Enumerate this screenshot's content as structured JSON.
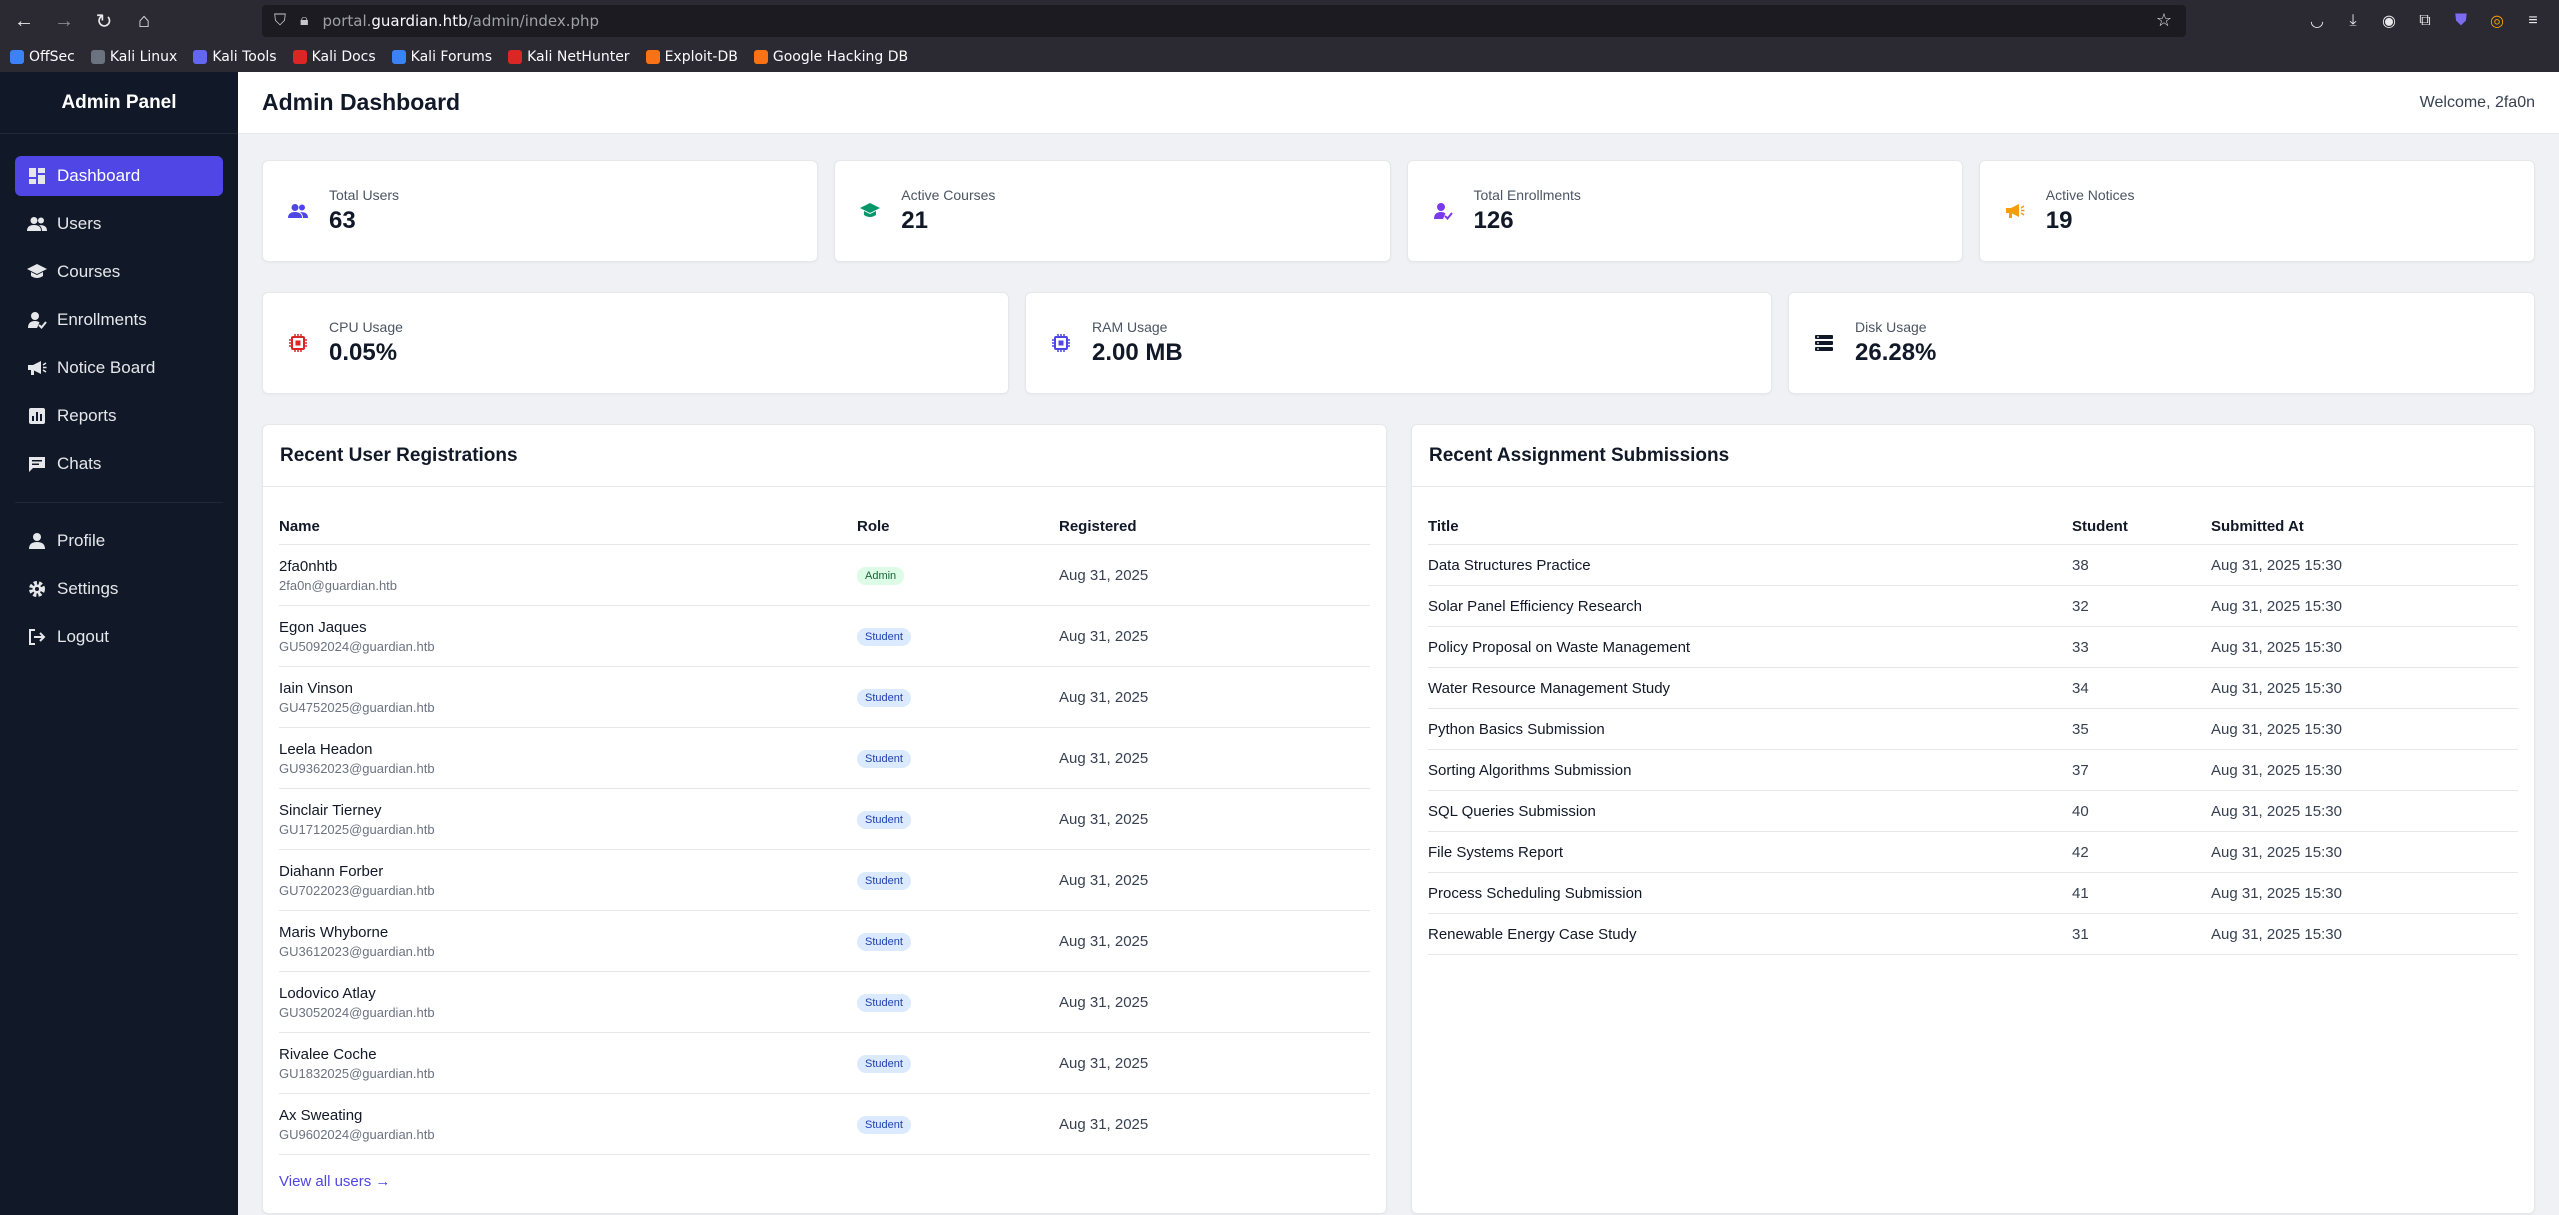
{
  "browser": {
    "url_prefix": "portal.",
    "url_domain": "guardian.htb",
    "url_path": "/admin/index.php",
    "bookmarks": [
      "OffSec",
      "Kali Linux",
      "Kali Tools",
      "Kali Docs",
      "Kali Forums",
      "Kali NetHunter",
      "Exploit-DB",
      "Google Hacking DB"
    ]
  },
  "sidebar": {
    "title": "Admin Panel",
    "items": [
      {
        "label": "Dashboard",
        "icon": "dashboard-icon",
        "active": true
      },
      {
        "label": "Users",
        "icon": "users-icon"
      },
      {
        "label": "Courses",
        "icon": "graduation-cap-icon"
      },
      {
        "label": "Enrollments",
        "icon": "user-check-icon"
      },
      {
        "label": "Notice Board",
        "icon": "megaphone-icon"
      },
      {
        "label": "Reports",
        "icon": "chart-icon"
      },
      {
        "label": "Chats",
        "icon": "chat-icon"
      }
    ],
    "footer_items": [
      {
        "label": "Profile",
        "icon": "user-icon"
      },
      {
        "label": "Settings",
        "icon": "gear-icon"
      },
      {
        "label": "Logout",
        "icon": "logout-icon"
      }
    ]
  },
  "header": {
    "title": "Admin Dashboard",
    "welcome": "Welcome, 2fa0n"
  },
  "stats": [
    {
      "label": "Total Users",
      "value": "63",
      "icon": "users-icon",
      "color": "#4f46e5"
    },
    {
      "label": "Active Courses",
      "value": "21",
      "icon": "graduation-cap-icon",
      "color": "#059669"
    },
    {
      "label": "Total Enrollments",
      "value": "126",
      "icon": "user-check-icon",
      "color": "#7c3aed"
    },
    {
      "label": "Active Notices",
      "value": "19",
      "icon": "megaphone-icon",
      "color": "#f59e0b"
    }
  ],
  "system": [
    {
      "label": "CPU Usage",
      "value": "0.05%",
      "icon": "cpu-icon",
      "color": "#dc2626"
    },
    {
      "label": "RAM Usage",
      "value": "2.00 MB",
      "icon": "memory-icon",
      "color": "#4f46e5"
    },
    {
      "label": "Disk Usage",
      "value": "26.28%",
      "icon": "disk-icon",
      "color": "#111827"
    }
  ],
  "registrations": {
    "title": "Recent User Registrations",
    "columns": [
      "Name",
      "Role",
      "Registered"
    ],
    "rows": [
      {
        "name": "2fa0nhtb",
        "email": "2fa0n@guardian.htb",
        "role": "Admin",
        "date": "Aug 31, 2025"
      },
      {
        "name": "Egon Jaques",
        "email": "GU5092024@guardian.htb",
        "role": "Student",
        "date": "Aug 31, 2025"
      },
      {
        "name": "Iain Vinson",
        "email": "GU4752025@guardian.htb",
        "role": "Student",
        "date": "Aug 31, 2025"
      },
      {
        "name": "Leela Headon",
        "email": "GU9362023@guardian.htb",
        "role": "Student",
        "date": "Aug 31, 2025"
      },
      {
        "name": "Sinclair Tierney",
        "email": "GU1712025@guardian.htb",
        "role": "Student",
        "date": "Aug 31, 2025"
      },
      {
        "name": "Diahann Forber",
        "email": "GU7022023@guardian.htb",
        "role": "Student",
        "date": "Aug 31, 2025"
      },
      {
        "name": "Maris Whyborne",
        "email": "GU3612023@guardian.htb",
        "role": "Student",
        "date": "Aug 31, 2025"
      },
      {
        "name": "Lodovico Atlay",
        "email": "GU3052024@guardian.htb",
        "role": "Student",
        "date": "Aug 31, 2025"
      },
      {
        "name": "Rivalee Coche",
        "email": "GU1832025@guardian.htb",
        "role": "Student",
        "date": "Aug 31, 2025"
      },
      {
        "name": "Ax Sweating",
        "email": "GU9602024@guardian.htb",
        "role": "Student",
        "date": "Aug 31, 2025"
      }
    ],
    "view_all": "View all users →"
  },
  "submissions": {
    "title": "Recent Assignment Submissions",
    "columns": [
      "Title",
      "Student",
      "Submitted At"
    ],
    "rows": [
      {
        "title": "Data Structures Practice",
        "student": "38",
        "submitted": "Aug 31, 2025 15:30"
      },
      {
        "title": "Solar Panel Efficiency Research",
        "student": "32",
        "submitted": "Aug 31, 2025 15:30"
      },
      {
        "title": "Policy Proposal on Waste Management",
        "student": "33",
        "submitted": "Aug 31, 2025 15:30"
      },
      {
        "title": "Water Resource Management Study",
        "student": "34",
        "submitted": "Aug 31, 2025 15:30"
      },
      {
        "title": "Python Basics Submission",
        "student": "35",
        "submitted": "Aug 31, 2025 15:30"
      },
      {
        "title": "Sorting Algorithms Submission",
        "student": "37",
        "submitted": "Aug 31, 2025 15:30"
      },
      {
        "title": "SQL Queries Submission",
        "student": "40",
        "submitted": "Aug 31, 2025 15:30"
      },
      {
        "title": "File Systems Report",
        "student": "42",
        "submitted": "Aug 31, 2025 15:30"
      },
      {
        "title": "Process Scheduling Submission",
        "student": "41",
        "submitted": "Aug 31, 2025 15:30"
      },
      {
        "title": "Renewable Energy Case Study",
        "student": "31",
        "submitted": "Aug 31, 2025 15:30"
      }
    ]
  }
}
